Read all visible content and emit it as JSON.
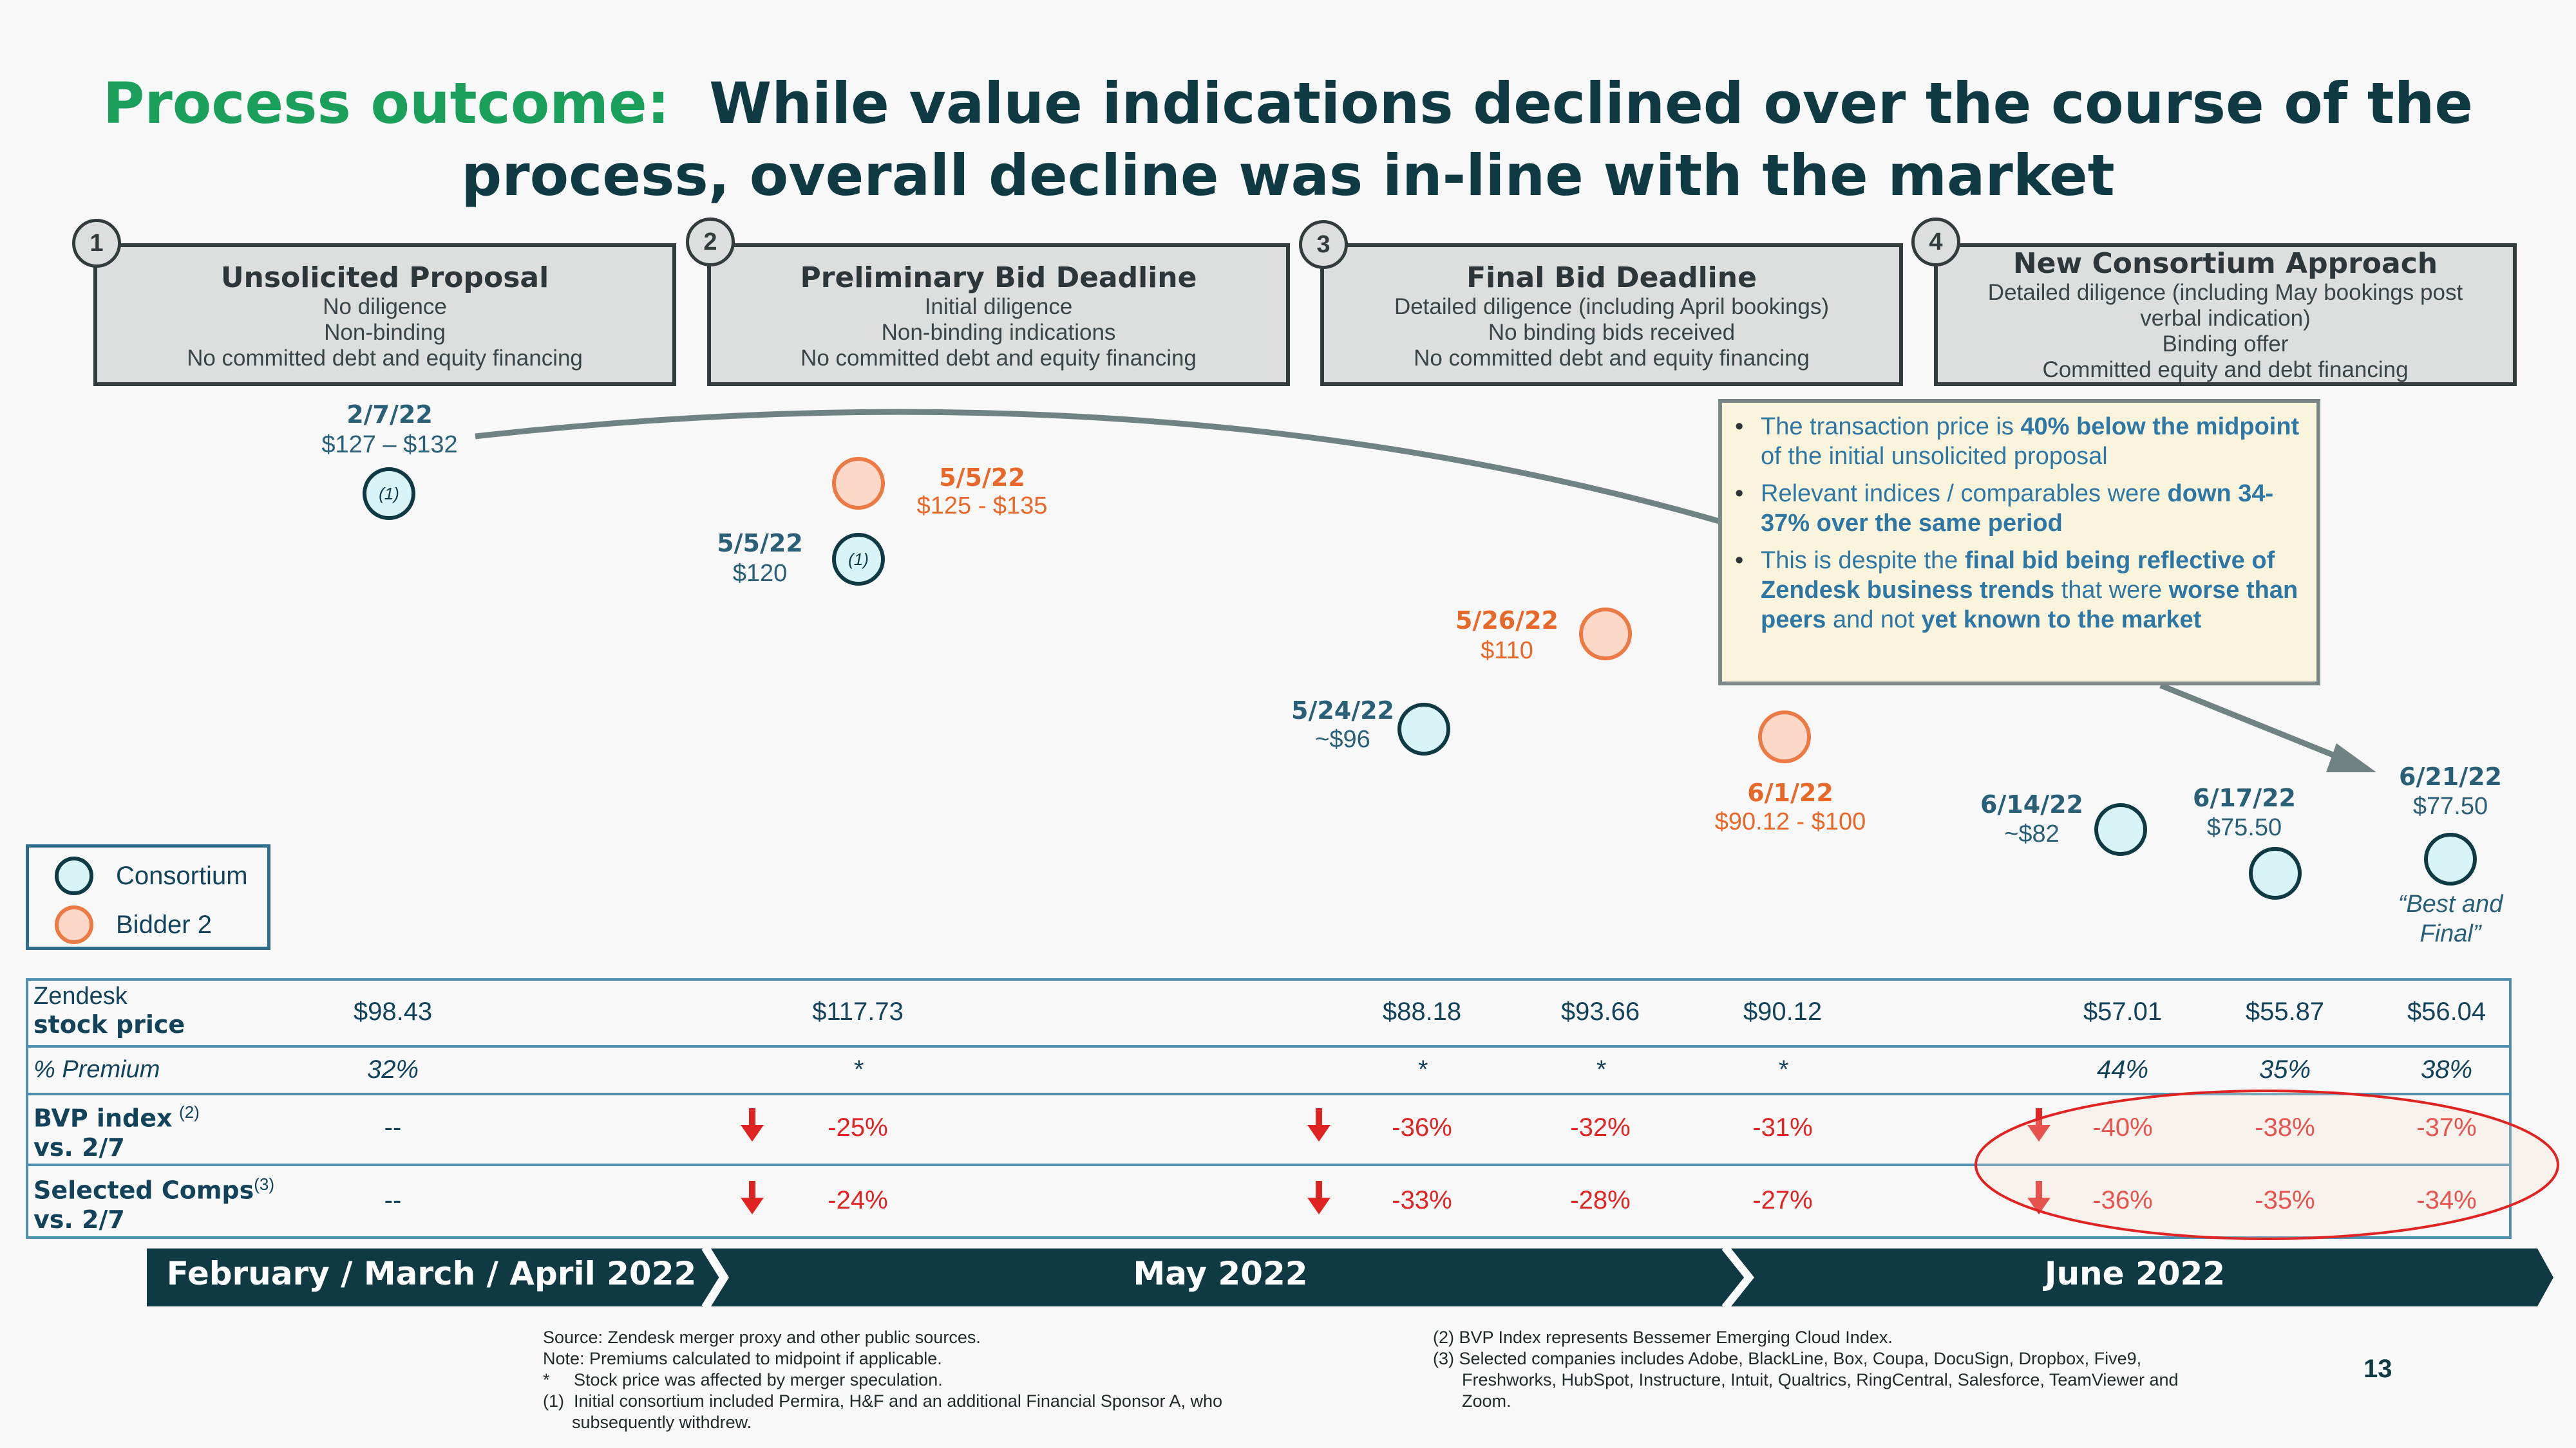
{
  "title": {
    "highlight": "Process outcome:",
    "line1": "While value indications declined over the course of the",
    "line2": "process, overall decline was in-line with the market"
  },
  "stages": [
    {
      "num": "1",
      "title": "Unsolicited Proposal",
      "lines": [
        "No diligence",
        "Non-binding",
        "No committed debt and equity financing"
      ]
    },
    {
      "num": "2",
      "title": "Preliminary Bid Deadline",
      "lines": [
        "Initial diligence",
        "Non-binding indications",
        "No committed debt and equity financing"
      ]
    },
    {
      "num": "3",
      "title": "Final Bid Deadline",
      "lines": [
        "Detailed diligence (including April bookings)",
        "No binding bids received",
        "No committed debt and equity financing"
      ]
    },
    {
      "num": "4",
      "title": "New Consortium Approach",
      "lines": [
        "Detailed diligence (including May bookings post",
        "verbal indication)",
        "Binding offer",
        "Committed equity and debt financing"
      ]
    }
  ],
  "points": [
    {
      "bidder": "Consortium",
      "date": "2/7/22",
      "price": "$127 – $132",
      "footnote": "(1)"
    },
    {
      "bidder": "Bidder 2",
      "date": "5/5/22",
      "price": "$125 - $135"
    },
    {
      "bidder": "Consortium",
      "date": "5/5/22",
      "price": "$120",
      "footnote": "(1)"
    },
    {
      "bidder": "Bidder 2",
      "date": "5/26/22",
      "price": "$110"
    },
    {
      "bidder": "Consortium",
      "date": "5/24/22",
      "price": "~$96"
    },
    {
      "bidder": "Bidder 2",
      "date": "6/1/22",
      "price": "$90.12 - $100"
    },
    {
      "bidder": "Consortium",
      "date": "6/14/22",
      "price": "~$82"
    },
    {
      "bidder": "Consortium",
      "date": "6/17/22",
      "price": "$75.50"
    },
    {
      "bidder": "Consortium",
      "date": "6/21/22",
      "price": "$77.50",
      "note": "“Best and Final”"
    }
  ],
  "callout": {
    "b1_pre": "The transaction price is ",
    "b1_bold": "40% below the midpoint",
    "b1_post": " of the initial unsolicited proposal",
    "b2_pre": "Relevant indices / comparables were ",
    "b2_bold": "down 34-37% over the same period",
    "b3_pre": "This is despite the ",
    "b3_bold": "final bid being reflective of Zendesk business trends",
    "b3_mid": " that were ",
    "b3_bold2": "worse than peers",
    "b3_mid2": " and not ",
    "b3_bold3": "yet known to the market"
  },
  "legend": {
    "consortium": "Consortium",
    "bidder2": "Bidder 2"
  },
  "table": {
    "rows": {
      "stock_a": "Zendesk",
      "stock_b": "stock price",
      "premium": "% Premium",
      "bvp_a": "BVP index",
      "bvp_sup": "(2)",
      "bvp_b": "vs. 2/7",
      "comps_a": "Selected Comps",
      "comps_sup": "(3)",
      "comps_b": "vs. 2/7"
    },
    "stock_price": [
      "$98.43",
      "$117.73",
      "$88.18",
      "$93.66",
      "$90.12",
      "$57.01",
      "$55.87",
      "$56.04"
    ],
    "premium": [
      "32%",
      "*",
      "*",
      "*",
      "*",
      "44%",
      "35%",
      "38%"
    ],
    "bvp": [
      "--",
      "-25%",
      "-36%",
      "-32%",
      "-31%",
      "-40%",
      "-38%",
      "-37%"
    ],
    "comps": [
      "--",
      "-24%",
      "-33%",
      "-28%",
      "-27%",
      "-36%",
      "-35%",
      "-34%"
    ]
  },
  "timeline": {
    "p1": "February / March / April 2022",
    "p2": "May 2022",
    "p3": "June 2022"
  },
  "sources": {
    "left": [
      "Source:  Zendesk merger proxy and other public sources.",
      "Note: Premiums calculated to midpoint if applicable.",
      "*     Stock price was affected by merger speculation.",
      "(1)  Initial consortium included Permira, H&F and an additional Financial Sponsor A, who",
      "      subsequently withdrew."
    ],
    "right": [
      "(2) BVP Index represents Bessemer Emerging Cloud Index.",
      "(3) Selected companies includes Adobe, BlackLine, Box, Coupa, DocuSign, Dropbox, Five9,",
      "      Freshworks, HubSpot, Instructure, Intuit, Qualtrics, RingCentral, Salesforce, TeamViewer and",
      "      Zoom."
    ]
  },
  "page_number": "13",
  "colors": {
    "consortium": "#0f3a44",
    "bidder2": "#ec7a44",
    "title_green": "#1aa05b",
    "navy": "#0f3a44",
    "negative": "#e02424"
  }
}
